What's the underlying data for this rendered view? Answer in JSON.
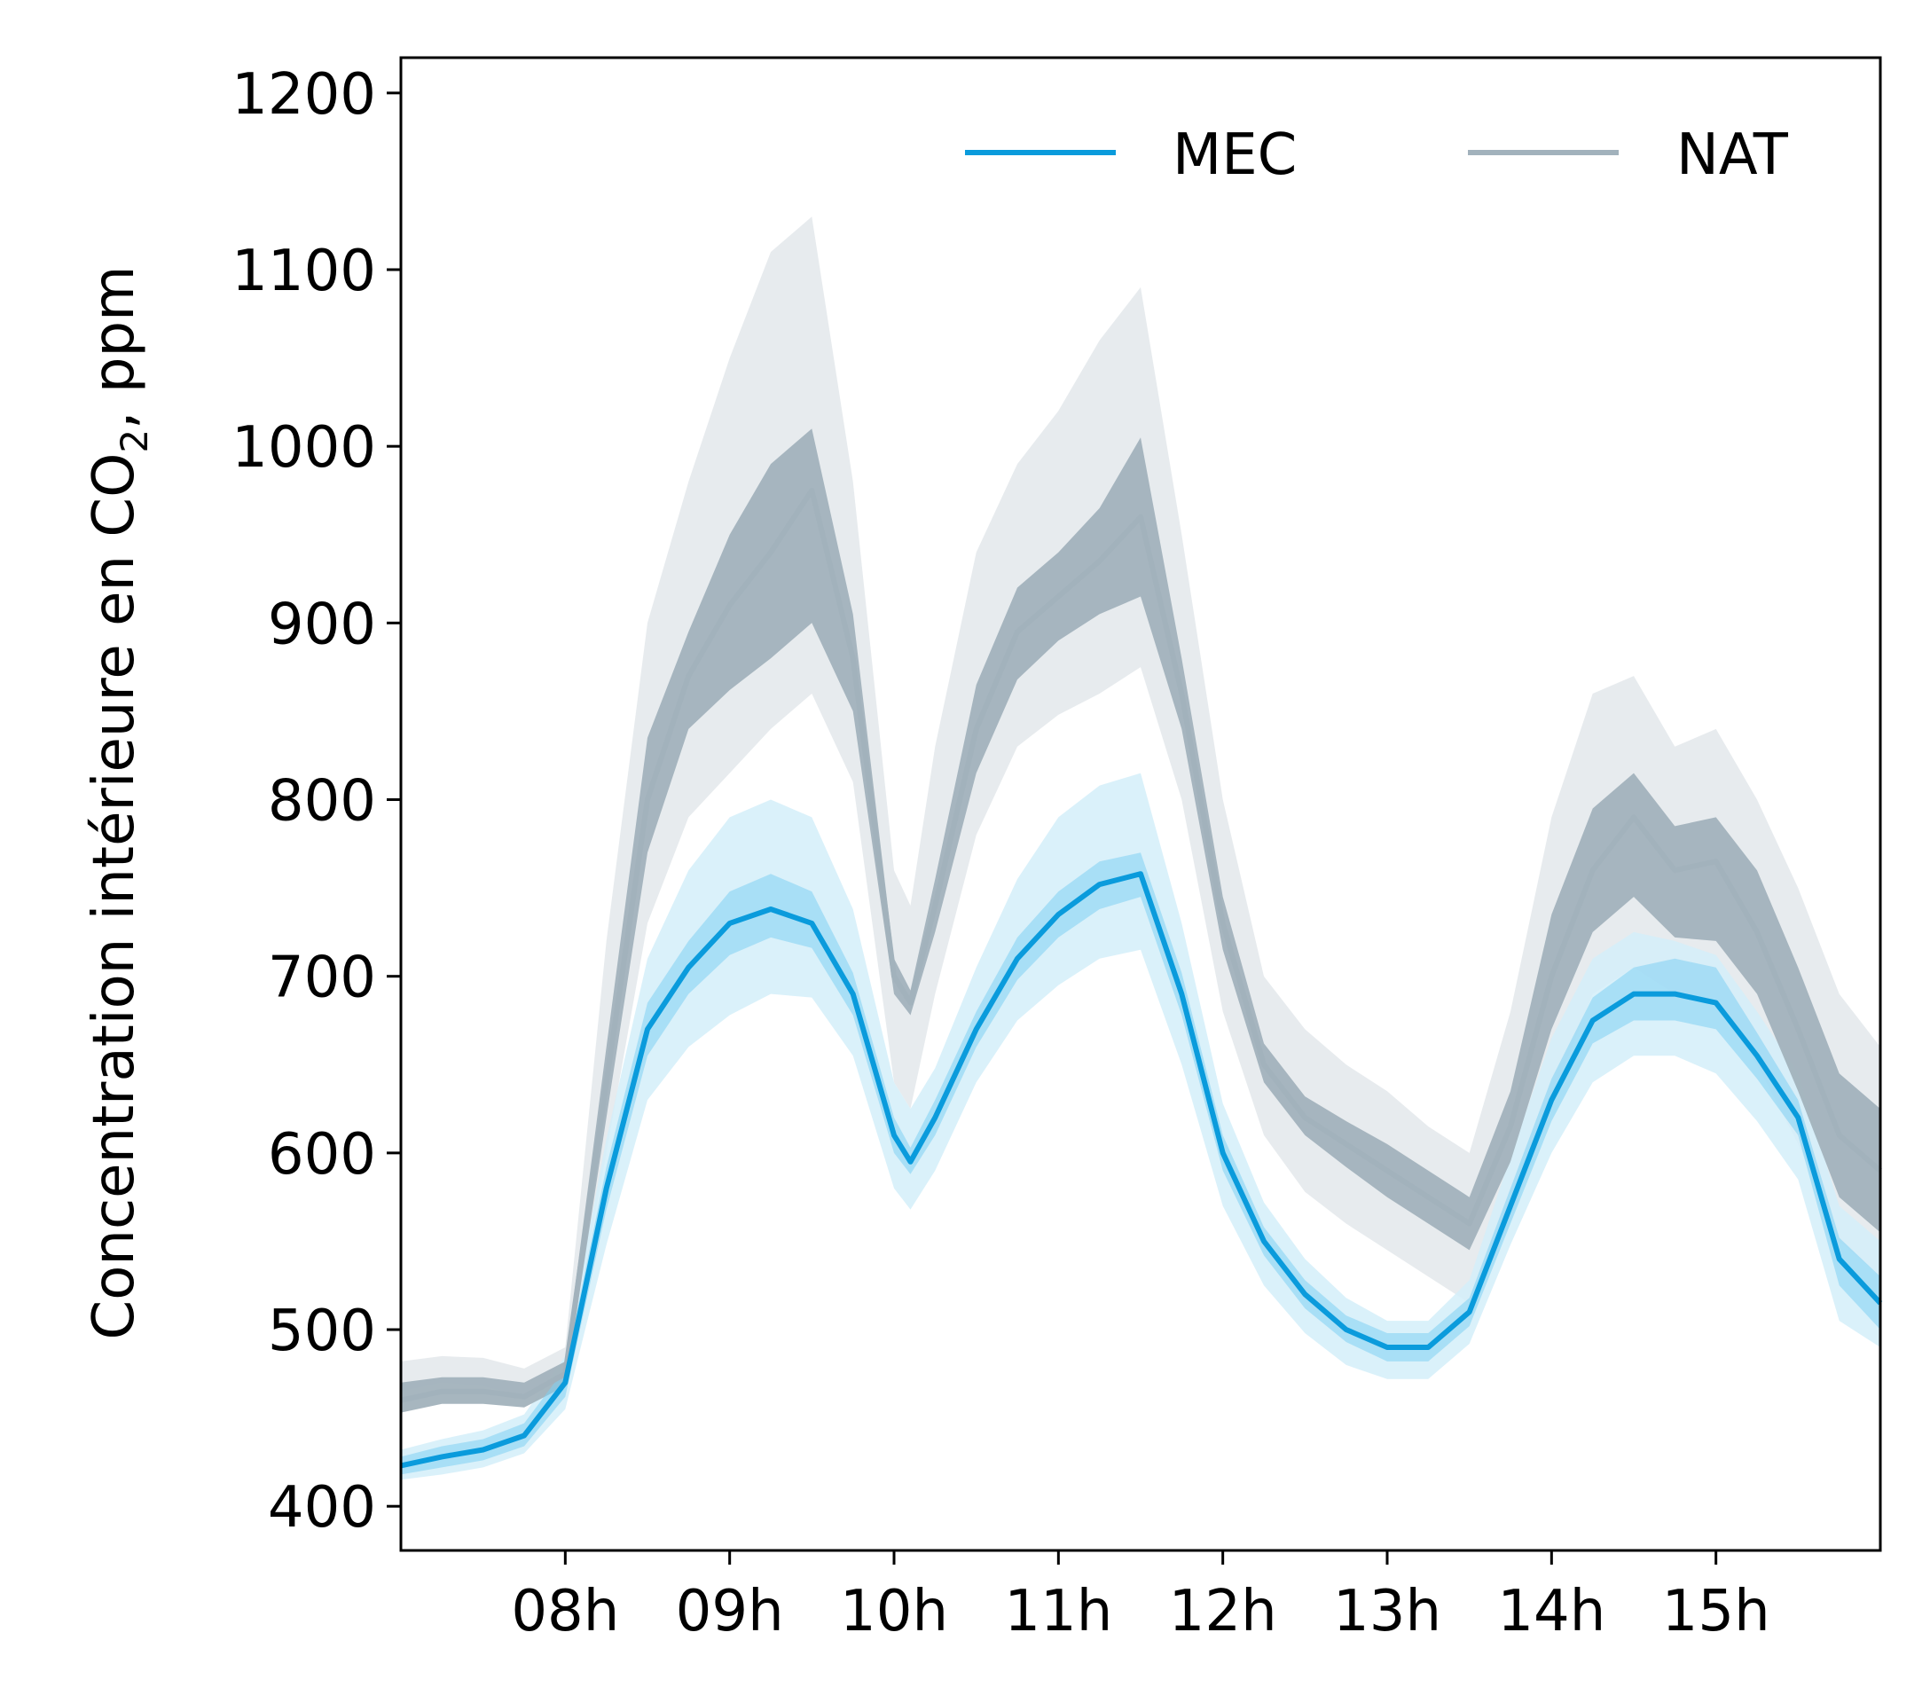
{
  "chart_data": {
    "type": "line",
    "title": "",
    "ylabel": "Concentration intérieure en CO₂, ppm",
    "ylabel_parts": {
      "before": "Concentration intérieure en CO",
      "sub": "2",
      "after": ", ppm"
    },
    "xlabel": "",
    "ylim": [
      375,
      1220
    ],
    "xlim": [
      7.0,
      16.0
    ],
    "yticks": [
      400,
      500,
      600,
      700,
      800,
      900,
      1000,
      1100,
      1200
    ],
    "xticks": [
      {
        "value": 8,
        "label": "08h"
      },
      {
        "value": 9,
        "label": "09h"
      },
      {
        "value": 10,
        "label": "10h"
      },
      {
        "value": 11,
        "label": "11h"
      },
      {
        "value": 12,
        "label": "12h"
      },
      {
        "value": 13,
        "label": "13h"
      },
      {
        "value": 14,
        "label": "14h"
      },
      {
        "value": 15,
        "label": "15h"
      }
    ],
    "grid": false,
    "legend_position": "top-right",
    "x": [
      7.0,
      7.25,
      7.5,
      7.75,
      8.0,
      8.25,
      8.5,
      8.75,
      9.0,
      9.25,
      9.5,
      9.75,
      10.0,
      10.1,
      10.25,
      10.5,
      10.75,
      11.0,
      11.25,
      11.5,
      11.75,
      12.0,
      12.25,
      12.5,
      12.75,
      13.0,
      13.25,
      13.5,
      13.75,
      14.0,
      14.25,
      14.5,
      14.75,
      15.0,
      15.25,
      15.5,
      15.75,
      16.0
    ],
    "series": [
      {
        "name": "MEC",
        "color": "#0a9bdc",
        "band_color": "#7fd0f2",
        "outer_color": "#d4eef9",
        "values": [
          423,
          428,
          432,
          440,
          470,
          580,
          670,
          705,
          730,
          738,
          730,
          690,
          610,
          595,
          620,
          670,
          710,
          735,
          752,
          758,
          690,
          600,
          550,
          520,
          500,
          490,
          490,
          510,
          570,
          630,
          675,
          690,
          690,
          685,
          655,
          620,
          540,
          515
        ],
        "band_low": [
          418,
          422,
          426,
          434,
          462,
          568,
          655,
          690,
          712,
          722,
          716,
          678,
          600,
          588,
          610,
          660,
          698,
          722,
          738,
          745,
          678,
          590,
          542,
          512,
          493,
          482,
          482,
          502,
          560,
          618,
          662,
          675,
          675,
          670,
          642,
          610,
          525,
          500
        ],
        "band_high": [
          428,
          434,
          438,
          447,
          478,
          592,
          685,
          720,
          748,
          758,
          748,
          702,
          620,
          603,
          630,
          680,
          722,
          748,
          765,
          770,
          702,
          610,
          558,
          528,
          508,
          498,
          498,
          518,
          580,
          642,
          688,
          705,
          710,
          705,
          668,
          630,
          552,
          530
        ],
        "outer_low": [
          415,
          418,
          422,
          430,
          455,
          548,
          630,
          660,
          678,
          690,
          688,
          655,
          580,
          568,
          590,
          640,
          675,
          695,
          710,
          715,
          650,
          570,
          525,
          498,
          480,
          472,
          472,
          492,
          548,
          600,
          640,
          655,
          655,
          645,
          618,
          585,
          505,
          490
        ],
        "outer_high": [
          432,
          438,
          443,
          452,
          485,
          608,
          710,
          760,
          790,
          800,
          790,
          738,
          640,
          625,
          648,
          705,
          755,
          790,
          808,
          815,
          730,
          628,
          572,
          540,
          518,
          505,
          505,
          528,
          598,
          665,
          710,
          725,
          720,
          712,
          680,
          645,
          570,
          550
        ]
      },
      {
        "name": "NAT",
        "color": "#a2b2bc",
        "band_color": "#a2b2bc",
        "outer_color": "#e3e8eb",
        "values": [
          460,
          465,
          465,
          462,
          475,
          640,
          800,
          870,
          910,
          940,
          975,
          880,
          700,
          685,
          740,
          840,
          895,
          915,
          935,
          960,
          860,
          730,
          650,
          620,
          605,
          590,
          575,
          560,
          615,
          700,
          760,
          790,
          760,
          765,
          725,
          670,
          610,
          590
        ],
        "band_low": [
          453,
          458,
          458,
          456,
          468,
          620,
          770,
          840,
          862,
          880,
          900,
          850,
          690,
          678,
          725,
          815,
          868,
          890,
          905,
          915,
          840,
          715,
          640,
          610,
          592,
          575,
          560,
          545,
          595,
          670,
          725,
          745,
          722,
          720,
          690,
          635,
          575,
          555
        ],
        "band_high": [
          470,
          473,
          473,
          470,
          482,
          660,
          835,
          895,
          950,
          990,
          1010,
          905,
          710,
          692,
          755,
          865,
          920,
          940,
          965,
          1005,
          880,
          745,
          662,
          632,
          618,
          605,
          590,
          575,
          635,
          735,
          795,
          815,
          785,
          790,
          760,
          705,
          645,
          625
        ],
        "outer_low": [
          465,
          470,
          468,
          462,
          472,
          600,
          730,
          790,
          815,
          840,
          860,
          810,
          640,
          625,
          690,
          780,
          830,
          848,
          860,
          875,
          800,
          680,
          610,
          578,
          560,
          545,
          530,
          515,
          560,
          630,
          690,
          705,
          690,
          685,
          650,
          605,
          550,
          530
        ],
        "outer_high": [
          482,
          485,
          484,
          478,
          490,
          720,
          900,
          980,
          1050,
          1110,
          1130,
          980,
          760,
          740,
          830,
          940,
          990,
          1020,
          1060,
          1090,
          950,
          800,
          700,
          670,
          650,
          635,
          615,
          600,
          680,
          790,
          860,
          870,
          830,
          840,
          800,
          750,
          690,
          660
        ]
      }
    ]
  }
}
